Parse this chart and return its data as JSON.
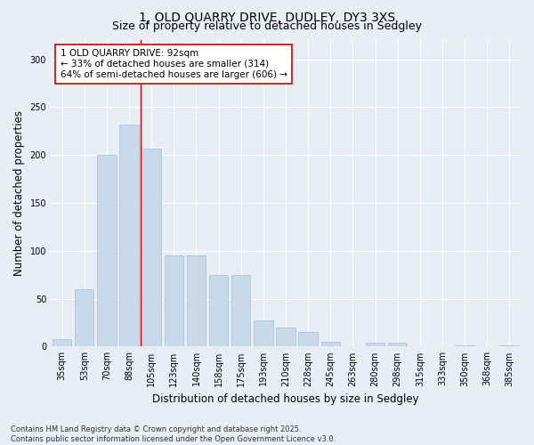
{
  "title_line1": "1, OLD QUARRY DRIVE, DUDLEY, DY3 3XS",
  "title_line2": "Size of property relative to detached houses in Sedgley",
  "xlabel": "Distribution of detached houses by size in Sedgley",
  "ylabel": "Number of detached properties",
  "categories": [
    "35sqm",
    "53sqm",
    "70sqm",
    "88sqm",
    "105sqm",
    "123sqm",
    "140sqm",
    "158sqm",
    "175sqm",
    "193sqm",
    "210sqm",
    "228sqm",
    "245sqm",
    "263sqm",
    "280sqm",
    "298sqm",
    "315sqm",
    "333sqm",
    "350sqm",
    "368sqm",
    "385sqm"
  ],
  "values": [
    8,
    60,
    200,
    232,
    207,
    95,
    95,
    75,
    75,
    27,
    20,
    15,
    5,
    0,
    4,
    4,
    0,
    0,
    1,
    0,
    1
  ],
  "bar_color": "#c9d9ea",
  "bar_edge_color": "#a8bfd4",
  "vline_x_index": 3,
  "vline_color": "#cc0000",
  "annotation_text": "1 OLD QUARRY DRIVE: 92sqm\n← 33% of detached houses are smaller (314)\n64% of semi-detached houses are larger (606) →",
  "annotation_box_facecolor": "#ffffff",
  "annotation_box_edgecolor": "#cc0000",
  "ylim": [
    0,
    320
  ],
  "yticks": [
    0,
    50,
    100,
    150,
    200,
    250,
    300
  ],
  "background_color": "#e8eef5",
  "grid_color": "#ffffff",
  "footer_text": "Contains HM Land Registry data © Crown copyright and database right 2025.\nContains public sector information licensed under the Open Government Licence v3.0.",
  "title_fontsize": 10,
  "subtitle_fontsize": 9,
  "axis_label_fontsize": 8.5,
  "tick_fontsize": 7,
  "annotation_fontsize": 7.5,
  "footer_fontsize": 6
}
